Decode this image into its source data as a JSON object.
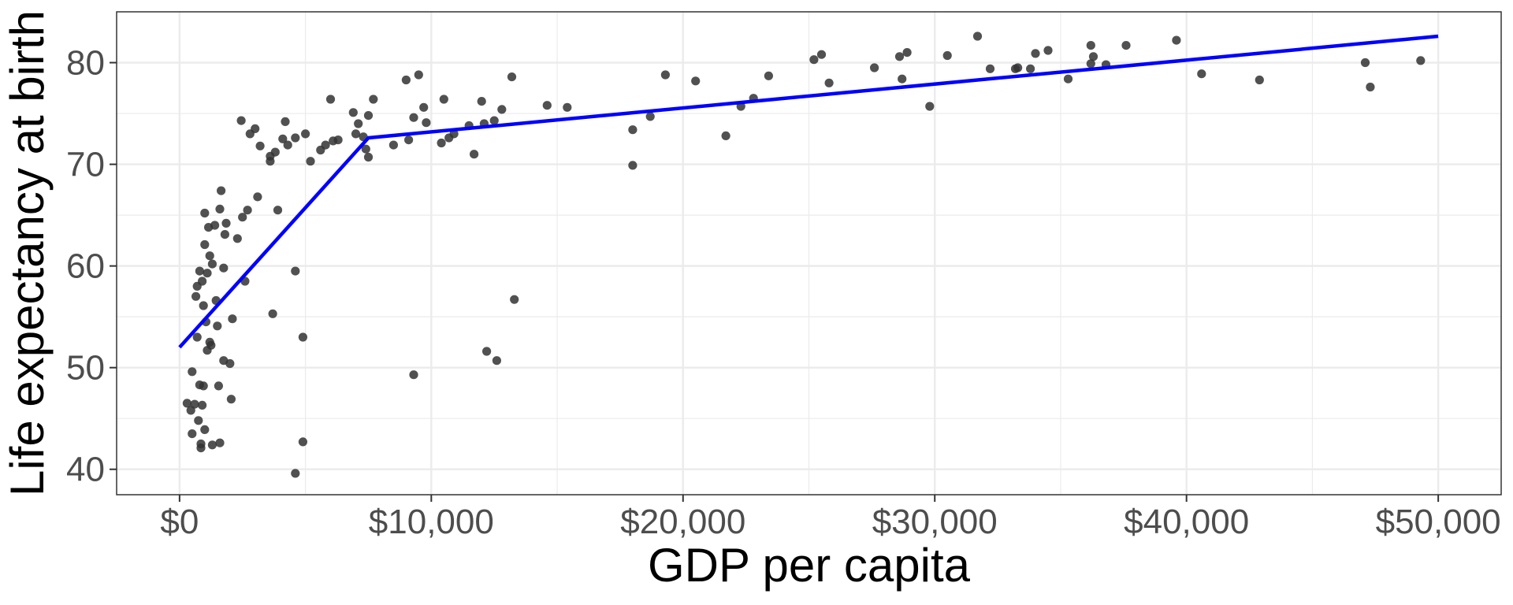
{
  "chart_data": {
    "type": "scatter",
    "title": "",
    "xlabel": "GDP per capita",
    "ylabel": "Life expectancy at birth",
    "xlim": [
      -2500,
      52500
    ],
    "ylim": [
      37.5,
      85
    ],
    "x_ticks": [
      0,
      10000,
      20000,
      30000,
      40000,
      50000
    ],
    "x_tick_labels": [
      "$0",
      "$10,000",
      "$20,000",
      "$30,000",
      "$40,000",
      "$50,000"
    ],
    "y_ticks": [
      40,
      50,
      60,
      70,
      80
    ],
    "y_tick_labels": [
      "40",
      "50",
      "60",
      "70",
      "80"
    ],
    "grid": true,
    "legend": "none",
    "colors": {
      "points": "#333333",
      "fit_line": "#0000ff",
      "grid": "#ebebeb",
      "panel_border": "#333333"
    },
    "series": [
      {
        "type": "scatter",
        "points": [
          [
            300,
            46.5
          ],
          [
            450,
            45.8
          ],
          [
            500,
            43.5
          ],
          [
            500,
            49.6
          ],
          [
            600,
            46.4
          ],
          [
            650,
            57.0
          ],
          [
            700,
            58.0
          ],
          [
            700,
            53.0
          ],
          [
            750,
            44.8
          ],
          [
            800,
            48.3
          ],
          [
            800,
            59.5
          ],
          [
            850,
            42.1
          ],
          [
            850,
            42.5
          ],
          [
            900,
            46.3
          ],
          [
            900,
            58.5
          ],
          [
            950,
            48.2
          ],
          [
            950,
            56.1
          ],
          [
            1000,
            62.1
          ],
          [
            1000,
            43.9
          ],
          [
            1000,
            65.2
          ],
          [
            1050,
            54.5
          ],
          [
            1100,
            51.7
          ],
          [
            1100,
            59.3
          ],
          [
            1150,
            63.8
          ],
          [
            1200,
            52.5
          ],
          [
            1200,
            61.0
          ],
          [
            1250,
            52.2
          ],
          [
            1300,
            60.2
          ],
          [
            1300,
            42.4
          ],
          [
            1400,
            64.0
          ],
          [
            1450,
            56.6
          ],
          [
            1500,
            54.1
          ],
          [
            1550,
            48.2
          ],
          [
            1600,
            42.6
          ],
          [
            1600,
            65.6
          ],
          [
            1650,
            67.4
          ],
          [
            1750,
            59.8
          ],
          [
            1750,
            50.7
          ],
          [
            1800,
            63.1
          ],
          [
            1850,
            64.2
          ],
          [
            2000,
            50.4
          ],
          [
            2050,
            46.9
          ],
          [
            2100,
            54.8
          ],
          [
            2300,
            62.7
          ],
          [
            2450,
            74.3
          ],
          [
            2500,
            64.8
          ],
          [
            2600,
            58.5
          ],
          [
            2700,
            65.5
          ],
          [
            2800,
            73.0
          ],
          [
            3000,
            73.5
          ],
          [
            3100,
            66.8
          ],
          [
            3200,
            71.8
          ],
          [
            3600,
            70.3
          ],
          [
            3600,
            70.8
          ],
          [
            3700,
            55.3
          ],
          [
            3800,
            71.2
          ],
          [
            3900,
            65.5
          ],
          [
            4100,
            72.5
          ],
          [
            4200,
            74.2
          ],
          [
            4300,
            71.9
          ],
          [
            4600,
            72.6
          ],
          [
            4600,
            59.5
          ],
          [
            4600,
            39.6
          ],
          [
            4900,
            42.7
          ],
          [
            4900,
            53.0
          ],
          [
            5000,
            73.0
          ],
          [
            5200,
            70.3
          ],
          [
            5600,
            71.4
          ],
          [
            5800,
            71.9
          ],
          [
            6000,
            76.4
          ],
          [
            6100,
            72.3
          ],
          [
            6300,
            72.4
          ],
          [
            6900,
            75.1
          ],
          [
            7000,
            73.0
          ],
          [
            7100,
            74.0
          ],
          [
            7300,
            72.7
          ],
          [
            7400,
            71.5
          ],
          [
            7500,
            70.7
          ],
          [
            7500,
            74.8
          ],
          [
            7700,
            76.4
          ],
          [
            8500,
            71.9
          ],
          [
            9000,
            78.3
          ],
          [
            9100,
            72.4
          ],
          [
            9300,
            74.6
          ],
          [
            9300,
            49.3
          ],
          [
            9500,
            78.8
          ],
          [
            9700,
            75.6
          ],
          [
            9800,
            74.1
          ],
          [
            10400,
            72.1
          ],
          [
            10500,
            76.4
          ],
          [
            10700,
            72.6
          ],
          [
            10900,
            73.0
          ],
          [
            11500,
            73.8
          ],
          [
            11700,
            71.0
          ],
          [
            12000,
            76.2
          ],
          [
            12100,
            74.0
          ],
          [
            12200,
            51.6
          ],
          [
            12500,
            74.3
          ],
          [
            12600,
            50.7
          ],
          [
            12800,
            75.4
          ],
          [
            13200,
            78.6
          ],
          [
            13300,
            56.7
          ],
          [
            14600,
            75.8
          ],
          [
            15400,
            75.6
          ],
          [
            18000,
            73.4
          ],
          [
            18000,
            69.9
          ],
          [
            18700,
            74.7
          ],
          [
            19300,
            78.8
          ],
          [
            20500,
            78.2
          ],
          [
            21700,
            72.8
          ],
          [
            22300,
            75.7
          ],
          [
            22800,
            76.5
          ],
          [
            23400,
            78.7
          ],
          [
            25200,
            80.3
          ],
          [
            25500,
            80.8
          ],
          [
            25800,
            78.0
          ],
          [
            27600,
            79.5
          ],
          [
            28600,
            80.6
          ],
          [
            28700,
            78.4
          ],
          [
            28900,
            81.0
          ],
          [
            29800,
            75.7
          ],
          [
            30500,
            80.7
          ],
          [
            31700,
            82.6
          ],
          [
            32200,
            79.4
          ],
          [
            33200,
            79.4
          ],
          [
            33300,
            79.5
          ],
          [
            33800,
            79.4
          ],
          [
            34000,
            80.9
          ],
          [
            34500,
            81.2
          ],
          [
            35300,
            78.4
          ],
          [
            36200,
            79.9
          ],
          [
            36200,
            81.7
          ],
          [
            36300,
            80.6
          ],
          [
            36800,
            79.8
          ],
          [
            37600,
            81.7
          ],
          [
            39600,
            82.2
          ],
          [
            40600,
            78.9
          ],
          [
            42900,
            78.3
          ],
          [
            47100,
            80.0
          ],
          [
            47300,
            77.6
          ],
          [
            49300,
            80.2
          ]
        ]
      },
      {
        "type": "line",
        "x": [
          0,
          7500,
          50000
        ],
        "y": [
          52.0,
          72.6,
          82.6
        ]
      }
    ]
  }
}
